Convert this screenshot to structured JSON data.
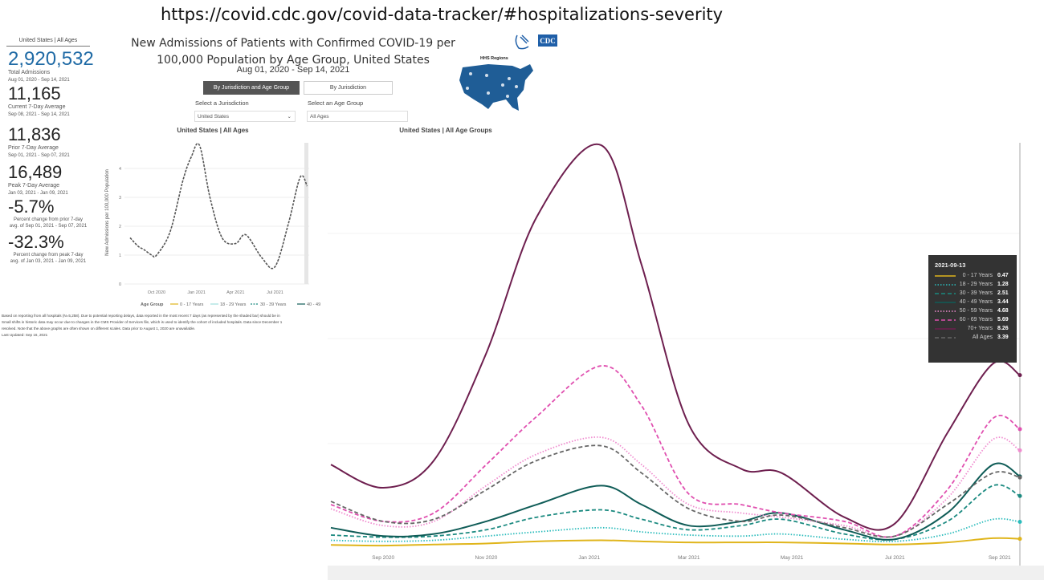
{
  "url": "https://covid.cdc.gov/covid-data-tracker/#hospitalizations-severity",
  "left": {
    "header": "United States | All Ages",
    "total": {
      "value": "2,920,532",
      "label": "Total Admissions",
      "range": "Aug 01, 2020 - Sep 14, 2021"
    },
    "current": {
      "value": "11,165",
      "label": "Current 7-Day Average",
      "range": "Sep 08, 2021 - Sep 14, 2021"
    },
    "prior": {
      "value": "11,836",
      "label": "Prior 7-Day Average",
      "range": "Sep 01, 2021 - Sep 07, 2021"
    },
    "peak": {
      "value": "16,489",
      "label": "Peak 7-Day Average",
      "range": "Jan 03, 2021 - Jan 09, 2021"
    },
    "pct_prior": {
      "value": "-5.7%",
      "label1": "Percent change from prior 7-day",
      "label2": "avg. of Sep 01, 2021 - Sep 07, 2021"
    },
    "pct_peak": {
      "value": "-32.3%",
      "label1": "Percent change from peak 7-day",
      "label2": "avg. of Jan 03, 2021 - Jan 09, 2021"
    }
  },
  "header": {
    "title1": "New Admissions of Patients with Confirmed COVID-19 per",
    "title2": "100,000 Population by Age Group, United States",
    "dates": "Aug 01, 2020 - Sep 14, 2021",
    "logo": "CDC",
    "map_title": "HHS Regions",
    "tab_active": "By Jurisdiction and Age Group",
    "tab_other": "By Jurisdiction",
    "jurisdiction_label": "Select a Jurisdiction",
    "jurisdiction_value": "United States",
    "age_label": "Select an Age Group",
    "age_value": "All Ages"
  },
  "notes": {
    "line1": "Based on reporting from all hospitals (N=5,258). Due to potential reporting delays, data reported in the most recent 7 days (as represented by the shaded bar) should be in",
    "line2": "Small shifts in historic data may occur due to changes in the CMS Provider of Services file, which is used to identify the cohort of included hospitals. Data since December 1",
    "line3": "resolved. Note that the above graphs are often shown on different scales. Data prior to August 1, 2020 are unavailable.",
    "updated": "Last Updated: Sep 16, 2021"
  },
  "chart_data": [
    {
      "type": "line",
      "title": "United States | All Ages",
      "ylabel": "New Admissions per 100,000 Population",
      "xlabel": "",
      "xticks": [
        "Oct 2020",
        "Jan 2021",
        "Apr 2021",
        "Jul 2021"
      ],
      "yticks": [
        0,
        1,
        2,
        3,
        4
      ],
      "ylim": [
        0,
        5
      ],
      "legend_title": "Age Group",
      "legend": [
        "0 - 17 Years",
        "18 - 29 Years",
        "30 - 39 Years",
        "40 - 49"
      ],
      "x": [
        "2020-08-01",
        "2020-08-20",
        "2020-09-01",
        "2020-09-20",
        "2020-10-01",
        "2020-11-01",
        "2020-12-01",
        "2020-12-20",
        "2021-01-08",
        "2021-02-01",
        "2021-03-01",
        "2021-04-01",
        "2021-04-25",
        "2021-06-01",
        "2021-07-01",
        "2021-08-01",
        "2021-08-28",
        "2021-09-13"
      ],
      "series": [
        {
          "name": "All Ages",
          "color": "#555555",
          "values": [
            1.6,
            1.3,
            1.2,
            1.0,
            1.0,
            1.8,
            3.6,
            4.4,
            4.8,
            3.0,
            1.6,
            1.4,
            1.7,
            0.9,
            0.6,
            2.1,
            3.7,
            3.39
          ]
        }
      ]
    },
    {
      "type": "line",
      "title": "United States | All Age Groups",
      "xlabel": "",
      "ylabel": "",
      "xticks": [
        "Sep 2020",
        "Nov 2020",
        "Jan 2021",
        "Mar 2021",
        "May 2021",
        "Jul 2021",
        "Sep 2021"
      ],
      "ylim": [
        0,
        20
      ],
      "x": [
        "2020-08-01",
        "2020-09-01",
        "2020-10-01",
        "2020-11-01",
        "2020-12-01",
        "2021-01-08",
        "2021-02-01",
        "2021-03-01",
        "2021-04-01",
        "2021-04-25",
        "2021-06-01",
        "2021-07-01",
        "2021-08-01",
        "2021-08-28",
        "2021-09-13"
      ],
      "tooltip": {
        "date": "2021-09-13"
      },
      "series": [
        {
          "name": "0 - 17 Years",
          "color": "#e0b51c",
          "dash": "solid",
          "values": [
            0.18,
            0.15,
            0.2,
            0.25,
            0.35,
            0.4,
            0.35,
            0.3,
            0.3,
            0.3,
            0.25,
            0.2,
            0.3,
            0.5,
            0.47
          ],
          "tip": "0.47"
        },
        {
          "name": "18 - 29 Years",
          "color": "#2bbcbc",
          "dash": "dot",
          "values": [
            0.4,
            0.35,
            0.4,
            0.6,
            0.8,
            1.0,
            0.8,
            0.65,
            0.6,
            0.7,
            0.45,
            0.35,
            0.7,
            1.4,
            1.28
          ],
          "tip": "1.28"
        },
        {
          "name": "30 - 39 Years",
          "color": "#1b8a80",
          "dash": "dash",
          "values": [
            0.65,
            0.55,
            0.6,
            0.9,
            1.5,
            1.85,
            1.4,
            0.9,
            1.1,
            1.4,
            0.7,
            0.45,
            1.3,
            3.0,
            2.51
          ],
          "tip": "2.51"
        },
        {
          "name": "40 - 49 Years",
          "color": "#0f5c57",
          "dash": "solid",
          "values": [
            1.0,
            0.6,
            0.7,
            1.3,
            2.1,
            3.0,
            2.1,
            1.1,
            1.3,
            1.7,
            0.9,
            0.45,
            1.7,
            4.0,
            3.44
          ],
          "tip": "3.44"
        },
        {
          "name": "50 - 59 Years",
          "color": "#f08ccf",
          "dash": "dot",
          "values": [
            1.9,
            1.1,
            1.3,
            3.0,
            4.5,
            5.3,
            4.0,
            2.1,
            1.7,
            1.5,
            1.1,
            0.6,
            2.4,
            5.2,
            4.68
          ],
          "tip": "4.68"
        },
        {
          "name": "60 - 69 Years",
          "color": "#e050b0",
          "dash": "dash",
          "values": [
            2.1,
            1.3,
            1.7,
            4.0,
            6.3,
            8.7,
            6.8,
            2.6,
            2.1,
            1.7,
            1.3,
            0.6,
            2.8,
            6.2,
            5.69
          ],
          "tip": "5.69"
        },
        {
          "name": "70+ Years",
          "color": "#6e1f4f",
          "dash": "solid",
          "values": [
            4.0,
            2.9,
            4.2,
            9.3,
            15.8,
            19.2,
            13.5,
            5.9,
            3.8,
            3.6,
            1.5,
            1.2,
            5.5,
            8.8,
            8.26
          ],
          "tip": "8.26"
        },
        {
          "name": "All Ages",
          "color": "#666666",
          "dash": "dash",
          "values": [
            2.25,
            1.3,
            1.4,
            2.8,
            4.2,
            4.9,
            3.6,
            1.9,
            1.3,
            1.6,
            1.0,
            0.6,
            2.1,
            3.6,
            3.39
          ],
          "tip": "3.39"
        }
      ]
    }
  ]
}
